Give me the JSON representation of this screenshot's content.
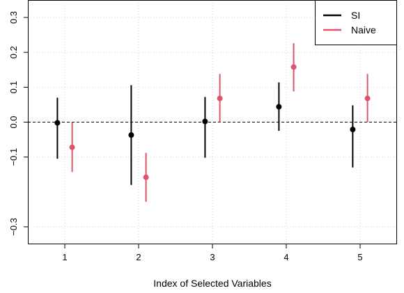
{
  "chart_data": {
    "type": "scatter",
    "subtype": "point-with-interval",
    "xlabel": "Index of Selected Variables",
    "ylabel": "",
    "title": "",
    "xlim": [
      0.5,
      5.5
    ],
    "ylim": [
      -0.35,
      0.35
    ],
    "x_ticks": [
      1,
      2,
      3,
      4,
      5
    ],
    "x_tick_labels": [
      "1",
      "2",
      "3",
      "4",
      "5"
    ],
    "y_ticks": [
      -0.3,
      -0.1,
      0.0,
      0.1,
      0.2,
      0.3
    ],
    "y_tick_labels": [
      "−0.3",
      "−0.1",
      "0.0",
      "0.1",
      "0.2",
      "0.3"
    ],
    "grid": true,
    "reference_line": {
      "y": 0.0,
      "style": "dashed"
    },
    "legend": {
      "position": "top-right",
      "entries": [
        "SI",
        "Naive"
      ]
    },
    "series": [
      {
        "name": "SI",
        "color": "#000000",
        "offset": -0.1,
        "x": [
          1,
          2,
          3,
          4,
          5
        ],
        "estimate": [
          -0.002,
          -0.037,
          0.002,
          0.044,
          -0.021
        ],
        "lower": [
          -0.105,
          -0.18,
          -0.102,
          -0.025,
          -0.13
        ],
        "upper": [
          0.07,
          0.106,
          0.072,
          0.114,
          0.048
        ]
      },
      {
        "name": "Naive",
        "color": "#DF536B",
        "offset": 0.1,
        "x": [
          1,
          2,
          3,
          4,
          5
        ],
        "estimate": [
          -0.072,
          -0.158,
          0.068,
          0.158,
          0.068
        ],
        "lower": [
          -0.143,
          -0.228,
          0.0,
          0.088,
          0.0
        ],
        "upper": [
          0.0,
          -0.088,
          0.138,
          0.226,
          0.138
        ]
      }
    ]
  }
}
